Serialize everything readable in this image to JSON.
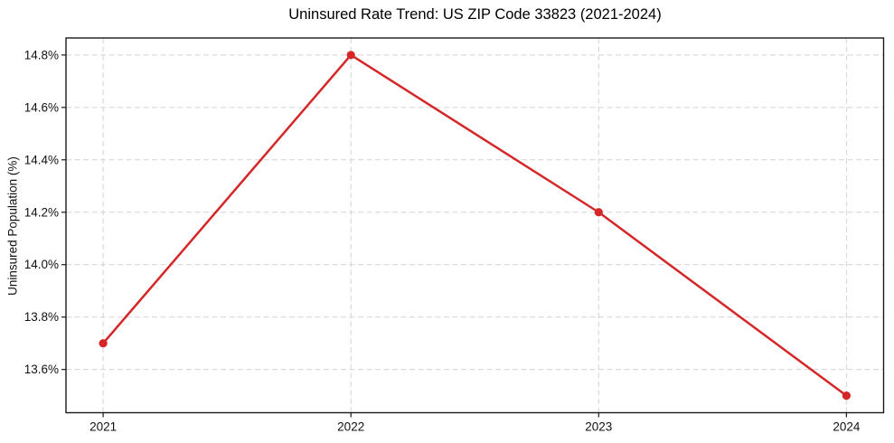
{
  "chart_data": {
    "type": "line",
    "title": "Uninsured Rate Trend: US ZIP Code 33823 (2021-2024)",
    "ylabel": "Uninsured Population (%)",
    "xlabel": "",
    "categories": [
      "2021",
      "2022",
      "2023",
      "2024"
    ],
    "values": [
      13.7,
      14.8,
      14.2,
      13.5
    ],
    "yticks": [
      13.6,
      13.8,
      14.0,
      14.2,
      14.4,
      14.6,
      14.8
    ],
    "ytick_labels": [
      "13.6%",
      "13.8%",
      "14.0%",
      "14.2%",
      "14.4%",
      "14.6%",
      "14.8%"
    ],
    "ylim": [
      13.435,
      14.865
    ],
    "xlim": [
      -0.15,
      3.15
    ],
    "grid": true,
    "grid_style": "dashed",
    "legend": "none",
    "marker": "circle",
    "colors": {
      "line": "#d62728",
      "marker": "#d62728",
      "grid": "#d3d3d3",
      "axis": "#1a1a1a",
      "text": "#111111"
    }
  }
}
